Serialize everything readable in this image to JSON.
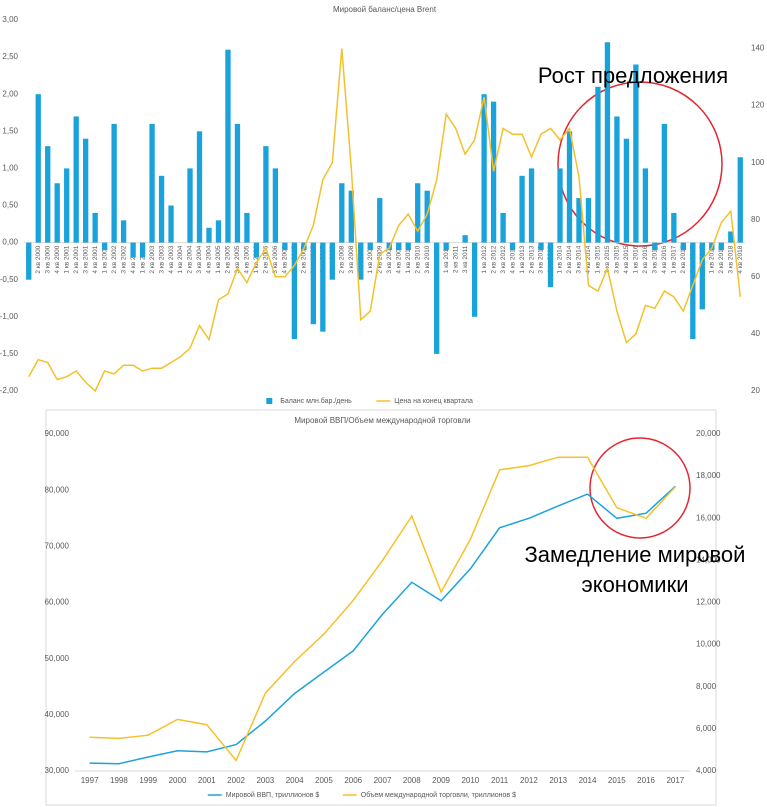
{
  "chart_data": [
    {
      "type": "combo",
      "title": "Мировой баланс/цена Brent",
      "categories": [
        "1 кв 2000",
        "2 кв 2000",
        "3 кв 2000",
        "4 кв 2000",
        "1 кв 2001",
        "2 кв 2001",
        "3 кв 2001",
        "4 кв 2001",
        "1 кв 2002",
        "2 кв 2002",
        "3 кв 2002",
        "4 кв 2002",
        "1 кв 2003",
        "2 кв 2003",
        "3 кв 2003",
        "4 кв 2003",
        "1 кв 2004",
        "2 кв 2004",
        "3 кв 2004",
        "4 кв 2004",
        "1 кв 2005",
        "2 кв 2005",
        "3 кв 2005",
        "4 кв 2005",
        "1 кв 2006",
        "2 кв 2006",
        "3 кв 2006",
        "4 кв 2006",
        "1 кв 2007",
        "2 кв 2007",
        "3 кв 2007",
        "4 кв 2007",
        "1 кв 2008",
        "2 кв 2008",
        "3 кв 2008",
        "4 кв 2008",
        "1 кв 2009",
        "2 кв 2009",
        "3 кв 2009",
        "4 кв 2009",
        "1 кв 2010",
        "2 кв 2010",
        "3 кв 2010",
        "4 кв 2010",
        "1 кв 2011",
        "2 кв 2011",
        "3 кв 2011",
        "4 кв 2011",
        "1 кв 2012",
        "2 кв 2012",
        "3 кв 2012",
        "4 кв 2012",
        "1 кв 2013",
        "2 кв 2013",
        "3 кв 2013",
        "4 кв 2013",
        "1 кв 2014",
        "2 кв 2014",
        "3 кв 2014",
        "4 кв 2014",
        "1 кв 2015",
        "2 кв 2015",
        "3 кв 2015",
        "4 кв 2015",
        "1 кв 2016",
        "2 кв 2016",
        "3 кв 2016",
        "4 кв 2016",
        "1 кв 2017",
        "2 кв 2017",
        "3 кв 2017",
        "4 кв 2017",
        "1 кв 2018",
        "2 кв 2018",
        "3 кв 2018",
        "4 кв 2018"
      ],
      "series": [
        {
          "name": "Баланс млн.бар./день",
          "type": "bar",
          "color": "#1aa3db",
          "values": [
            -0.5,
            2.0,
            1.3,
            0.8,
            1.0,
            1.7,
            1.4,
            0.4,
            -0.1,
            1.6,
            0.3,
            -0.2,
            -0.2,
            1.6,
            0.9,
            0.5,
            0.0,
            1.0,
            1.5,
            0.2,
            0.3,
            2.6,
            1.6,
            0.4,
            -0.2,
            1.3,
            1.0,
            -0.1,
            -1.3,
            -0.1,
            -1.1,
            -1.2,
            -0.5,
            0.8,
            0.7,
            -0.5,
            -0.1,
            0.6,
            -0.1,
            -0.1,
            -0.1,
            0.8,
            0.7,
            -1.5,
            -0.1,
            0.0,
            0.1,
            -1.0,
            2.0,
            1.9,
            0.4,
            -0.1,
            0.9,
            1.0,
            -0.1,
            -0.6,
            1.0,
            1.5,
            0.6,
            0.6,
            2.1,
            2.7,
            1.7,
            1.4,
            2.4,
            1.0,
            -0.1,
            1.6,
            0.4,
            -0.1,
            -1.3,
            -0.9,
            -0.1,
            -0.1,
            0.15,
            1.15
          ]
        },
        {
          "name": "Цена на конец квартала",
          "type": "line",
          "axis": "y2",
          "color": "#f2c12e",
          "values": [
            25,
            31,
            30,
            24,
            25,
            27,
            23,
            20,
            27,
            26,
            29,
            29,
            27,
            28,
            28,
            30,
            32,
            35,
            43,
            38,
            52,
            54,
            63,
            58,
            65,
            70,
            60,
            60,
            64,
            70,
            78,
            94,
            100,
            140,
            98,
            45,
            48,
            68,
            70,
            78,
            82,
            76,
            82,
            94,
            117,
            112,
            103,
            108,
            123,
            97,
            112,
            110,
            110,
            102,
            110,
            112,
            108,
            112,
            95,
            57,
            55,
            63,
            48,
            37,
            40,
            50,
            49,
            55,
            53,
            48,
            57,
            66,
            70,
            79,
            83,
            53
          ]
        }
      ],
      "ylim": [
        -2,
        3
      ],
      "yticks": [
        {
          "value": -2,
          "label": "-2,00"
        },
        {
          "value": -1.5,
          "label": "-1,50"
        },
        {
          "value": -1,
          "label": "-1,00"
        },
        {
          "value": -0.5,
          "label": "-0,50"
        },
        {
          "value": 0,
          "label": "0,00"
        },
        {
          "value": 0.5,
          "label": "0,50"
        },
        {
          "value": 1,
          "label": "1,00"
        },
        {
          "value": 1.5,
          "label": "1,50"
        },
        {
          "value": 2,
          "label": "2,00"
        },
        {
          "value": 2.5,
          "label": "2,50"
        },
        {
          "value": 3,
          "label": "3,00"
        }
      ],
      "y2lim": [
        20,
        150
      ],
      "y2ticks": [
        20,
        40,
        60,
        80,
        100,
        120,
        140
      ],
      "grid": false,
      "legend": "bottom",
      "annotation": [
        "Рост предложения"
      ]
    },
    {
      "type": "line",
      "title": "Мировой ВВП/Объем международной торговли",
      "categories": [
        "1997",
        "1998",
        "1999",
        "2000",
        "2001",
        "2002",
        "2003",
        "2004",
        "2005",
        "2006",
        "2007",
        "2008",
        "2009",
        "2010",
        "2011",
        "2012",
        "2013",
        "2014",
        "2015",
        "2016",
        "2017"
      ],
      "series": [
        {
          "name": "Мировой ВВП, триллионов $",
          "color": "#1ca3dd",
          "values": [
            31400,
            31300,
            32500,
            33600,
            33400,
            34700,
            38900,
            43800,
            47600,
            51400,
            57900,
            63600,
            60300,
            66000,
            73300,
            75000,
            77200,
            79300,
            75000,
            75900,
            80700
          ]
        },
        {
          "name": "Объем международной торговли, триллионов $",
          "axis": "y2",
          "color": "#f5c12a",
          "values": [
            5600,
            5550,
            5700,
            6450,
            6200,
            4500,
            7700,
            9200,
            10500,
            12100,
            14000,
            16100,
            12500,
            15000,
            18300,
            18500,
            18900,
            18900,
            16500,
            16000,
            17500
          ]
        }
      ],
      "ylim": [
        30000,
        90000
      ],
      "yticks": [
        {
          "value": 30000,
          "label": "30,000"
        },
        {
          "value": 40000,
          "label": "40,000"
        },
        {
          "value": 50000,
          "label": "50,000"
        },
        {
          "value": 60000,
          "label": "60,000"
        },
        {
          "value": 70000,
          "label": "70,000"
        },
        {
          "value": 80000,
          "label": "80,000"
        },
        {
          "value": 90000,
          "label": "90,000"
        }
      ],
      "y2lim": [
        4000,
        20000
      ],
      "y2ticks": [
        {
          "value": 4000,
          "label": "4,000"
        },
        {
          "value": 6000,
          "label": "6,000"
        },
        {
          "value": 8000,
          "label": "8,000"
        },
        {
          "value": 10000,
          "label": "10,000"
        },
        {
          "value": 12000,
          "label": "12,000"
        },
        {
          "value": 14000,
          "label": "14,000"
        },
        {
          "value": 16000,
          "label": "16,000"
        },
        {
          "value": 18000,
          "label": "18,000"
        },
        {
          "value": 20000,
          "label": "20,000"
        }
      ],
      "grid": false,
      "legend": "bottom",
      "annotation": [
        "Замедление мировой",
        "экономики"
      ]
    }
  ]
}
